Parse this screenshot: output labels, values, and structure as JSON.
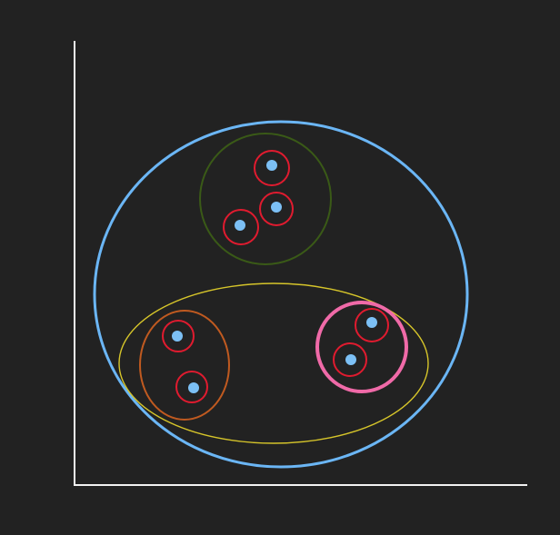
{
  "diagram": {
    "background": "#222222",
    "axis_color": "#f2f2f2",
    "groups": {
      "outer": {
        "color": "#6bb6f5"
      },
      "cluster_top": {
        "color": "#3a5a17",
        "points": 3
      },
      "cluster_bottom": {
        "color": "#d6c52a"
      },
      "cluster_bottom_left": {
        "color": "#c05a20",
        "points": 2
      },
      "cluster_bottom_right": {
        "color": "#f06aa8",
        "points": 2
      }
    },
    "point_ring_color": "#e01b2f",
    "point_color": "#7cc0f5",
    "point_count": 7
  }
}
